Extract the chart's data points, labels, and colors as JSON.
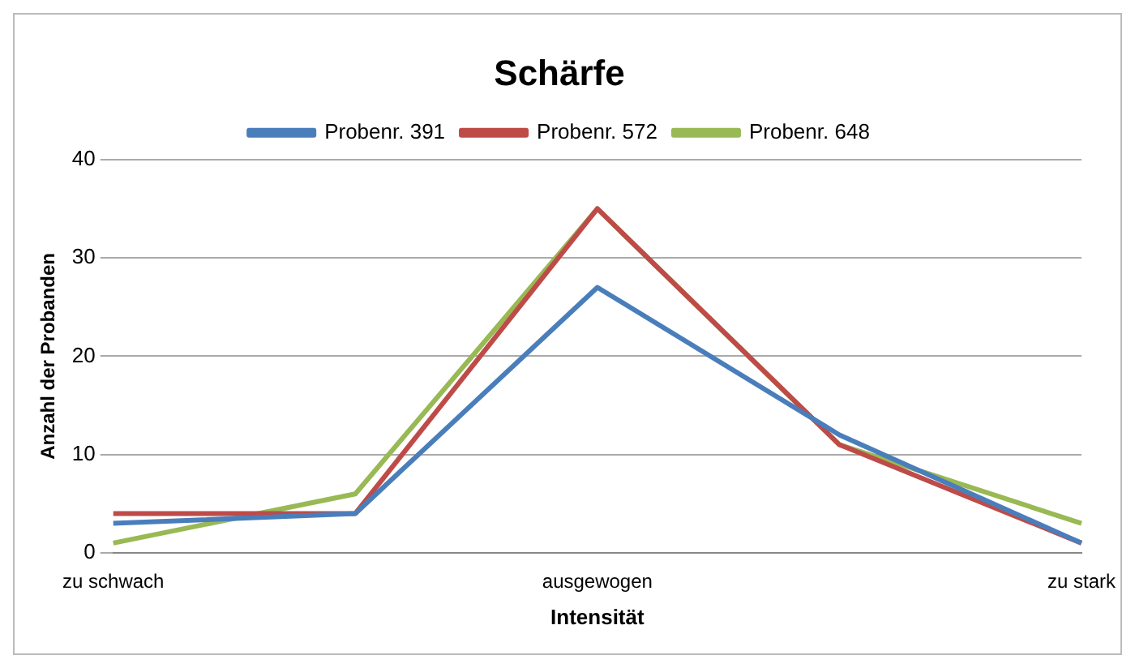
{
  "chart_data": {
    "type": "line",
    "title": "Schärfe",
    "xlabel": "Intensität",
    "ylabel": "Anzahl der Probanden",
    "categories": [
      "zu schwach",
      null,
      "ausgewogen",
      null,
      "zu stark"
    ],
    "series": [
      {
        "name": "Probenr. 391",
        "color": "#4a7ebb",
        "values": [
          3,
          4,
          27,
          12,
          1
        ]
      },
      {
        "name": "Probenr. 572",
        "color": "#be4b48",
        "values": [
          4,
          4,
          35,
          11,
          1
        ]
      },
      {
        "name": "Probenr. 648",
        "color": "#98b954",
        "values": [
          1,
          6,
          35,
          11,
          3
        ]
      }
    ],
    "ylim": [
      0,
      40
    ],
    "yticks": [
      0,
      10,
      20,
      30,
      40
    ],
    "grid": "y",
    "legend": "top",
    "marker": "none",
    "line_style": "solid"
  }
}
